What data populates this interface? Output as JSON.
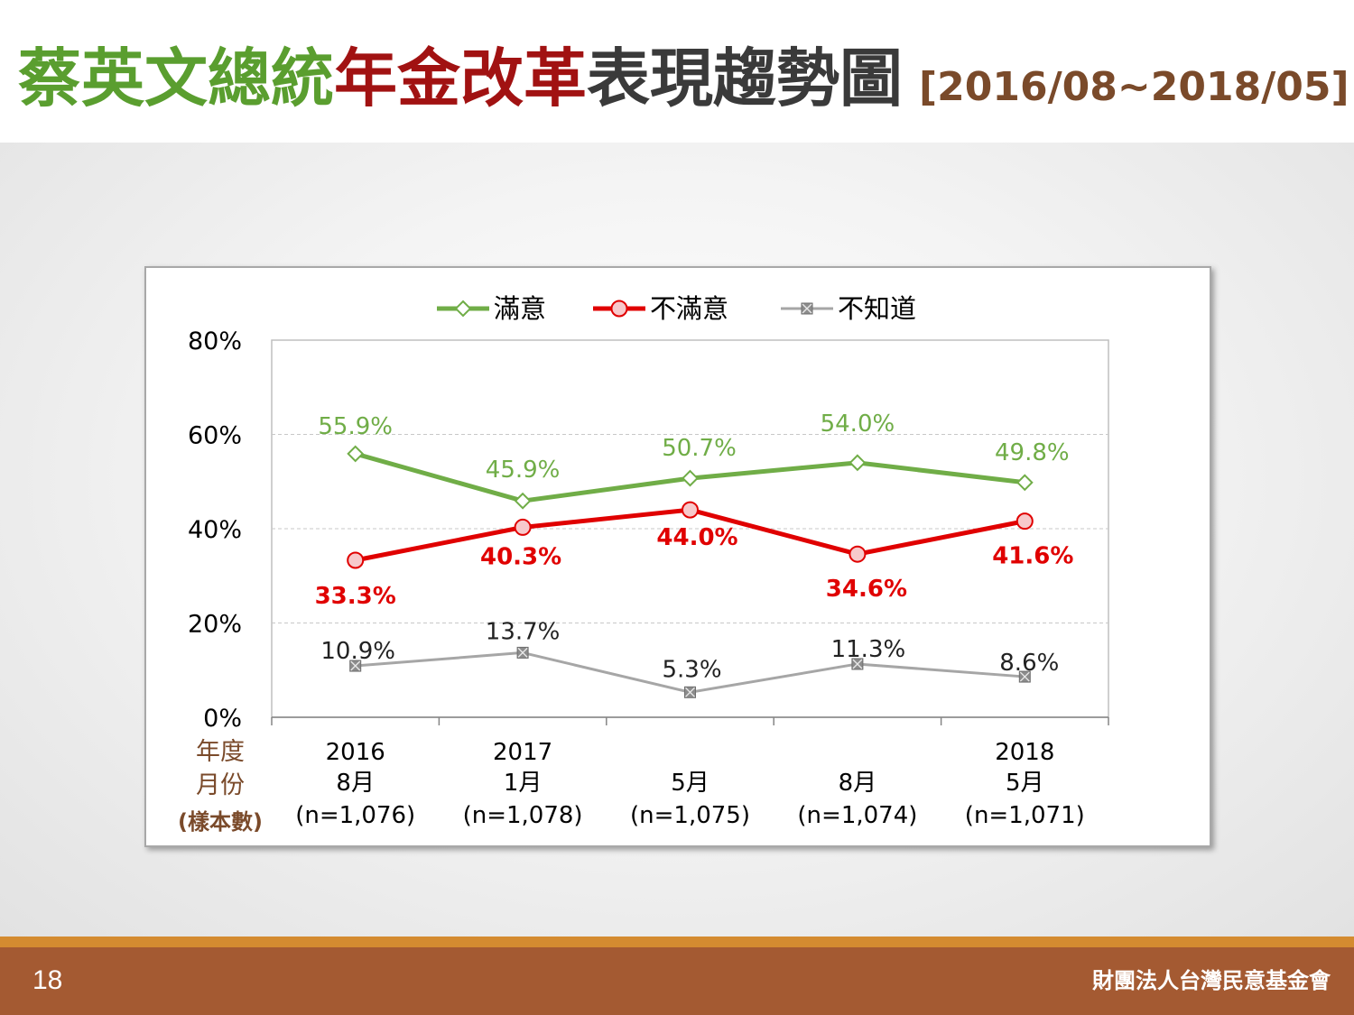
{
  "slide": {
    "title": {
      "part1": "蔡英文總統",
      "part2": "年金改革",
      "part3": "表現趨勢圖",
      "range": "[2016/08~2018/05]"
    },
    "page_number": "18",
    "organization": "財團法人台灣民意基金會"
  },
  "colors": {
    "satisfied": "#70ad47",
    "dissatisfied": "#e00000",
    "dont_know": "#a6a6a6",
    "axis_caption": "#7a4a2a"
  },
  "chart_data": {
    "type": "line",
    "ylim": [
      0,
      80
    ],
    "yticks": [
      "0%",
      "20%",
      "40%",
      "60%",
      "80%"
    ],
    "grid": true,
    "legend_position": "top",
    "axis_caption": [
      "年度",
      "月份",
      "(樣本數)"
    ],
    "categories": [
      {
        "year": "2016",
        "month": "8月",
        "sample": "(n=1,076)"
      },
      {
        "year": "2017",
        "month": "1月",
        "sample": "(n=1,078)"
      },
      {
        "year": "",
        "month": "5月",
        "sample": "(n=1,075)"
      },
      {
        "year": "",
        "month": "8月",
        "sample": "(n=1,074)"
      },
      {
        "year": "2018",
        "month": "5月",
        "sample": "(n=1,071)"
      }
    ],
    "series": [
      {
        "name": "滿意",
        "marker": "diamond",
        "values": [
          55.9,
          45.9,
          50.7,
          54.0,
          49.8
        ],
        "labels": [
          "55.9%",
          "45.9%",
          "50.7%",
          "54.0%",
          "49.8%"
        ]
      },
      {
        "name": "不滿意",
        "marker": "circle",
        "values": [
          33.3,
          40.3,
          44.0,
          34.6,
          41.6
        ],
        "labels": [
          "33.3%",
          "40.3%",
          "44.0%",
          "34.6%",
          "41.6%"
        ]
      },
      {
        "name": "不知道",
        "marker": "x-square",
        "values": [
          10.9,
          13.7,
          5.3,
          11.3,
          8.6
        ],
        "labels": [
          "10.9%",
          "13.7%",
          "5.3%",
          "11.3%",
          "8.6%"
        ]
      }
    ]
  }
}
